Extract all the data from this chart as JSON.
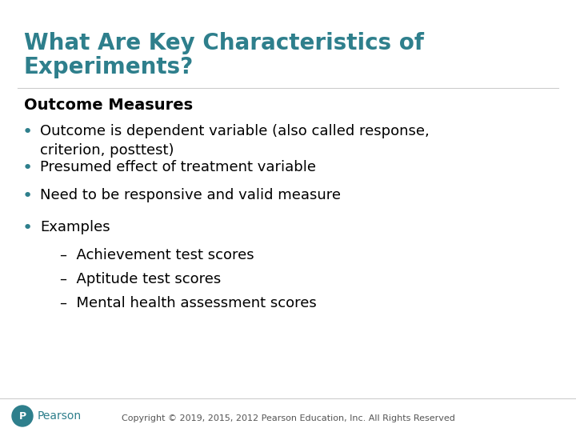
{
  "title_line1": "What Are Key Characteristics of",
  "title_line2": "Experiments?",
  "title_color": "#2E7F8C",
  "section_header": "Outcome Measures",
  "section_header_color": "#000000",
  "bullets": [
    "Outcome is dependent variable (also called response,\ncriterion, posttest)",
    "Presumed effect of treatment variable",
    "Need to be responsive and valid measure",
    "Examples"
  ],
  "sub_bullets": [
    "–  Achievement test scores",
    "–  Aptitude test scores",
    "–  Mental health assessment scores"
  ],
  "bullet_color": "#000000",
  "sub_bullet_color": "#000000",
  "bullet_dot_color": "#2E7F8C",
  "background_color": "#FFFFFF",
  "footer_text": "Copyright © 2019, 2015, 2012 Pearson Education, Inc. All Rights Reserved",
  "footer_color": "#555555",
  "pearson_text": "Pearson",
  "title_fontsize": 20,
  "section_header_fontsize": 14,
  "bullet_fontsize": 13,
  "sub_bullet_fontsize": 13,
  "footer_fontsize": 8
}
